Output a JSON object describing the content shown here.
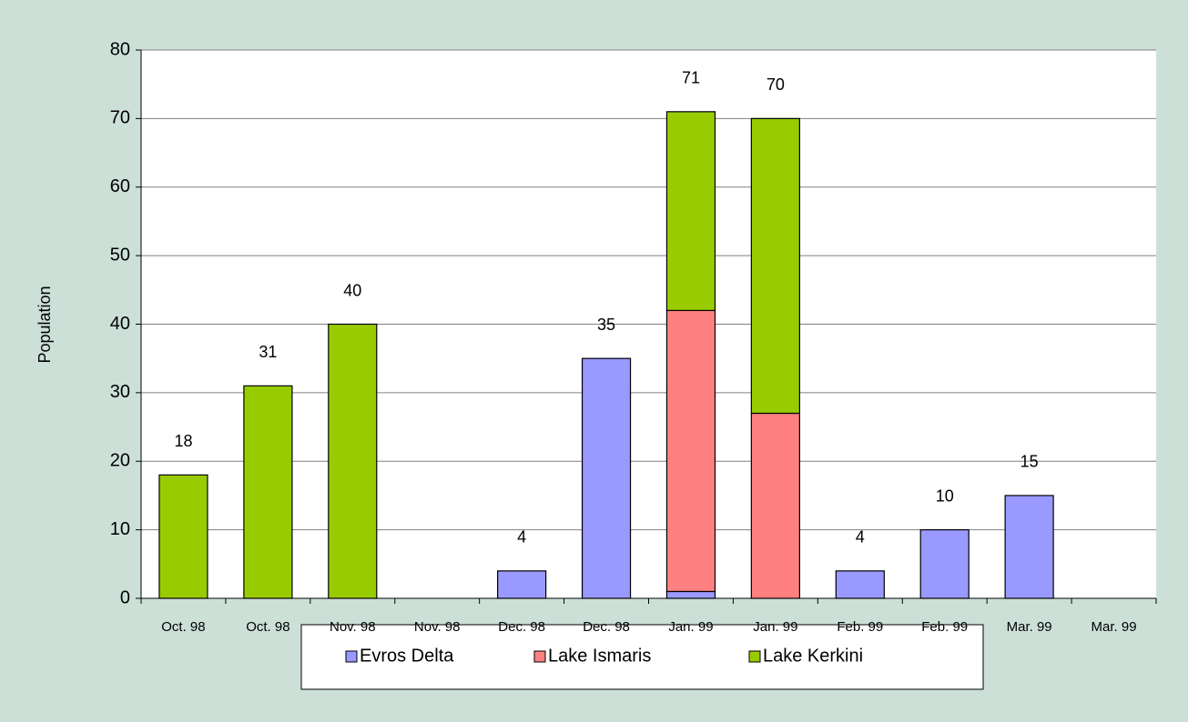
{
  "chart_data": {
    "type": "stacked_bar",
    "y_label": "Population",
    "categories": [
      "Oct. 98",
      "Oct. 98",
      "Nov. 98",
      "Nov. 98",
      "Dec. 98",
      "Dec. 98",
      "Jan. 99",
      "Jan. 99",
      "Feb. 99",
      "Feb. 99",
      "Mar. 99",
      "Mar. 99"
    ],
    "series": [
      {
        "name": "Evros Delta",
        "color": "#9999ff",
        "values": [
          null,
          null,
          null,
          null,
          4,
          35,
          1,
          null,
          4,
          10,
          15,
          null
        ]
      },
      {
        "name": "Lake Ismaris",
        "color": "#ff8080",
        "values": [
          null,
          null,
          null,
          null,
          null,
          null,
          41,
          27,
          null,
          null,
          null,
          null
        ]
      },
      {
        "name": "Lake Kerkini",
        "color": "#99cc00",
        "values": [
          18,
          31,
          40,
          null,
          null,
          null,
          29,
          43,
          null,
          null,
          null,
          null
        ]
      }
    ],
    "totals": [
      18,
      31,
      40,
      null,
      4,
      35,
      71,
      70,
      4,
      10,
      15,
      null
    ],
    "ylim": [
      0,
      80
    ],
    "yticks": [
      0,
      10,
      20,
      30,
      40,
      50,
      60,
      70,
      80
    ],
    "grid": true,
    "legend": "bottom"
  }
}
